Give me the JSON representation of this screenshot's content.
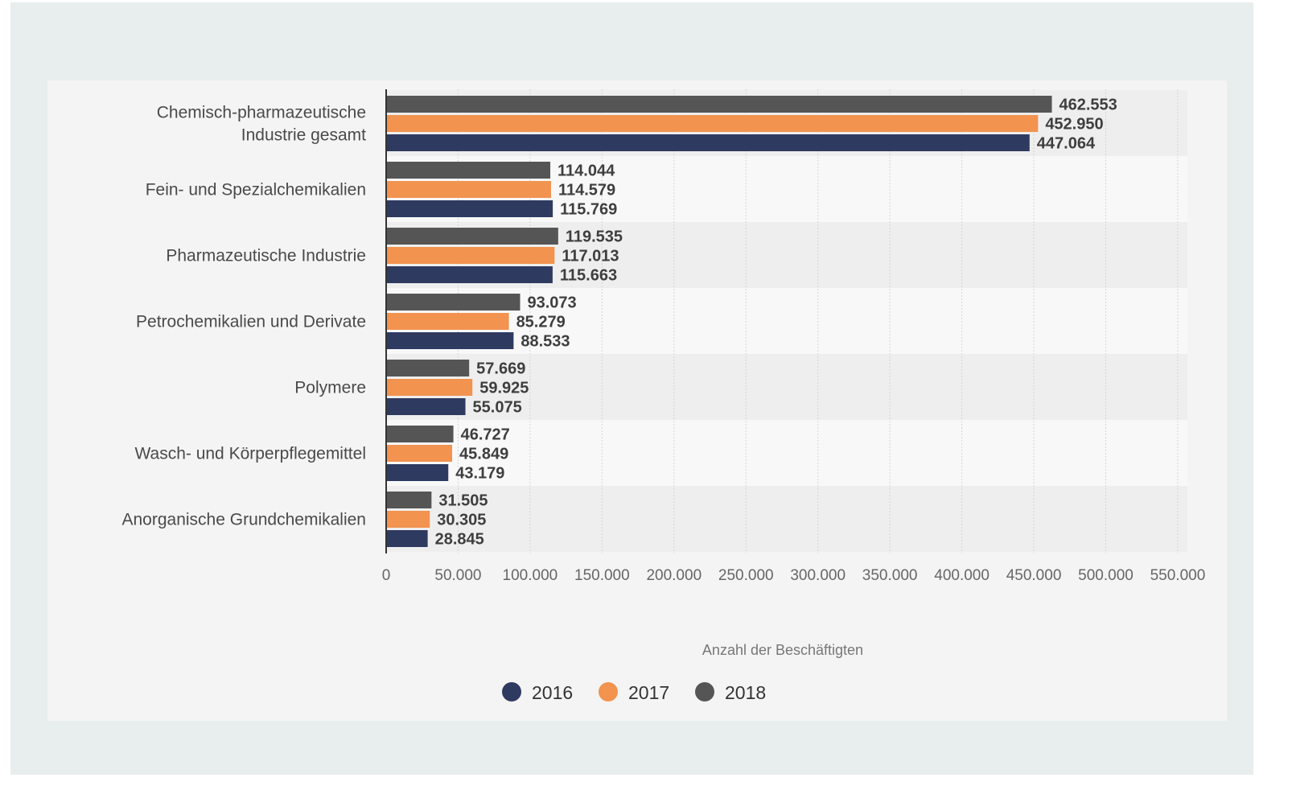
{
  "chart_data": {
    "type": "bar",
    "orientation": "horizontal",
    "categories": [
      [
        "Chemisch-pharmazeutische",
        "Industrie gesamt"
      ],
      [
        "Fein- und Spezialchemikalien"
      ],
      [
        "Pharmazeutische Industrie"
      ],
      [
        "Petrochemikalien und Derivate"
      ],
      [
        "Polymere"
      ],
      [
        "Wasch- und Körperpflegemittel"
      ],
      [
        "Anorganische Grundchemikalien"
      ]
    ],
    "series": [
      {
        "name": "2018",
        "color": "#555555",
        "values": [
          462553,
          114044,
          119535,
          93073,
          57669,
          46727,
          31505
        ],
        "labels": [
          "462.553",
          "114.044",
          "119.535",
          "93.073",
          "57.669",
          "46.727",
          "31.505"
        ]
      },
      {
        "name": "2017",
        "color": "#f2934f",
        "values": [
          452950,
          114579,
          117013,
          85279,
          59925,
          45849,
          30305
        ],
        "labels": [
          "452.950",
          "114.579",
          "117.013",
          "85.279",
          "59.925",
          "45.849",
          "30.305"
        ]
      },
      {
        "name": "2016",
        "color": "#2e3a60",
        "values": [
          447064,
          115769,
          115663,
          88533,
          55075,
          43179,
          28845
        ],
        "labels": [
          "447.064",
          "115.769",
          "115.663",
          "88.533",
          "55.075",
          "43.179",
          "28.845"
        ]
      }
    ],
    "legend_order": [
      "2016",
      "2017",
      "2018"
    ],
    "xaxis": {
      "range": [
        0,
        550000
      ],
      "ticks": [
        0,
        50000,
        100000,
        150000,
        200000,
        250000,
        300000,
        350000,
        400000,
        450000,
        500000,
        550000
      ],
      "tick_labels": [
        "0",
        "50.000",
        "100.000",
        "150.000",
        "200.000",
        "250.000",
        "300.000",
        "350.000",
        "400.000",
        "450.000",
        "500.000",
        "550.000"
      ]
    },
    "xlabel": "Anzahl der Beschäftigten",
    "ylabel": "",
    "title": "",
    "grid": true,
    "legend_position": "bottom"
  }
}
